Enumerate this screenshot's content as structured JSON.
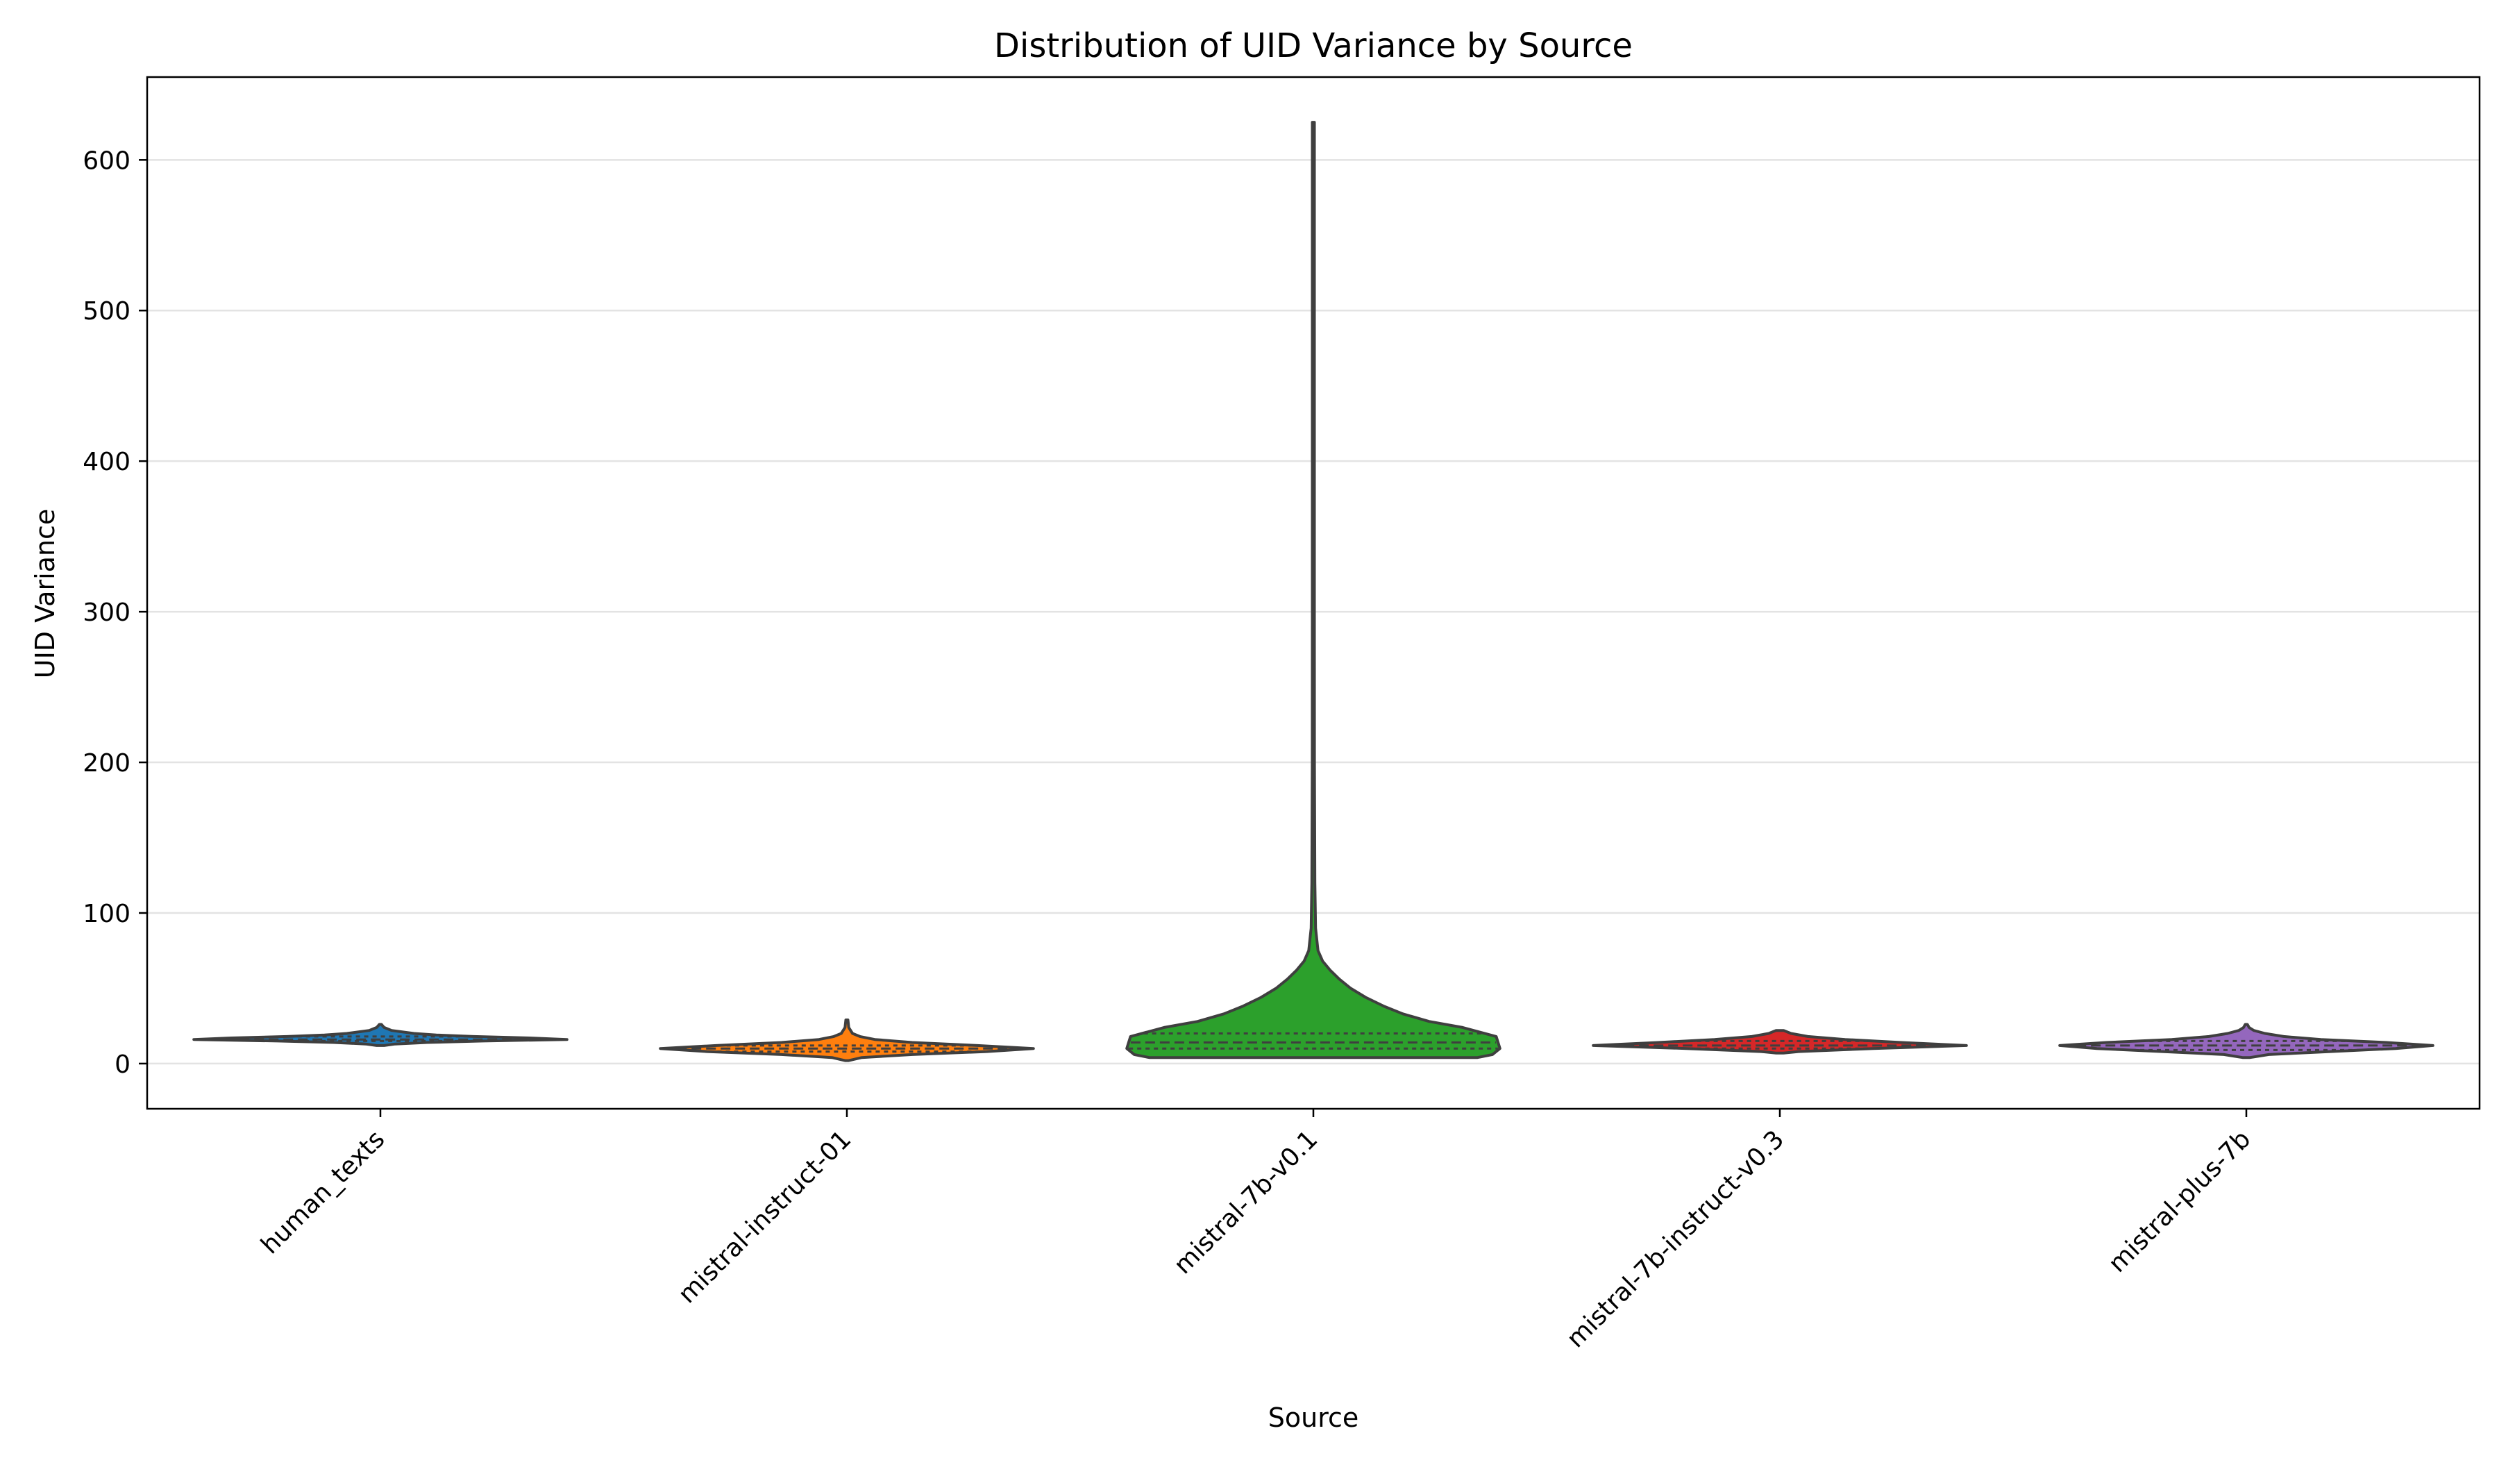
{
  "chart_data": {
    "type": "violin",
    "title": "Distribution of UID Variance by Source",
    "xlabel": "Source",
    "ylabel": "UID Variance",
    "ylim": [
      -30,
      655
    ],
    "yticks": [
      0,
      100,
      200,
      300,
      400,
      500,
      600
    ],
    "grid": "horizontal",
    "legend": "none",
    "inner": "quartile",
    "categories": [
      "human_texts",
      "mistral-instruct-01",
      "mistral-7b-v0.1",
      "mistral-7b-instruct-v0.3",
      "mistral-plus-7b"
    ],
    "series": [
      {
        "category": "human_texts",
        "color": "#1f77b4",
        "min": 12,
        "q1": 15,
        "median": 16,
        "q3": 18,
        "max": 26,
        "profile": [
          [
            12,
            0.02
          ],
          [
            13,
            0.08
          ],
          [
            14,
            0.25
          ],
          [
            15,
            0.55
          ],
          [
            16,
            1.0
          ],
          [
            17,
            0.8
          ],
          [
            18,
            0.5
          ],
          [
            19,
            0.3
          ],
          [
            20,
            0.18
          ],
          [
            22,
            0.06
          ],
          [
            24,
            0.02
          ],
          [
            26,
            0.005
          ]
        ]
      },
      {
        "category": "mistral-instruct-01",
        "color": "#ff7f0e",
        "min": 2,
        "q1": 8,
        "median": 10,
        "q3": 12,
        "max": 29,
        "profile": [
          [
            2,
            0.01
          ],
          [
            4,
            0.08
          ],
          [
            6,
            0.35
          ],
          [
            8,
            0.75
          ],
          [
            10,
            1.0
          ],
          [
            12,
            0.7
          ],
          [
            14,
            0.35
          ],
          [
            16,
            0.15
          ],
          [
            18,
            0.07
          ],
          [
            20,
            0.03
          ],
          [
            24,
            0.01
          ],
          [
            29,
            0.003
          ]
        ]
      },
      {
        "category": "mistral-7b-v0.1",
        "color": "#2ca02c",
        "min": 4,
        "q1": 10,
        "median": 14,
        "q3": 20,
        "max": 625,
        "profile": [
          [
            4,
            0.88
          ],
          [
            6,
            0.96
          ],
          [
            10,
            1.0
          ],
          [
            14,
            0.99
          ],
          [
            18,
            0.98
          ],
          [
            24,
            0.8
          ],
          [
            28,
            0.62
          ],
          [
            33,
            0.48
          ],
          [
            38,
            0.38
          ],
          [
            44,
            0.28
          ],
          [
            50,
            0.2
          ],
          [
            56,
            0.14
          ],
          [
            62,
            0.09
          ],
          [
            68,
            0.05
          ],
          [
            75,
            0.025
          ],
          [
            90,
            0.012
          ],
          [
            120,
            0.008
          ],
          [
            200,
            0.006
          ],
          [
            300,
            0.005
          ],
          [
            400,
            0.0055
          ],
          [
            500,
            0.004
          ],
          [
            600,
            0.004
          ],
          [
            625,
            0.004
          ]
        ]
      },
      {
        "category": "mistral-7b-instruct-v0.3",
        "color": "#d62728",
        "min": 7,
        "q1": 10,
        "median": 12,
        "q3": 15,
        "max": 22,
        "profile": [
          [
            7,
            0.02
          ],
          [
            8,
            0.1
          ],
          [
            10,
            0.5
          ],
          [
            12,
            1.0
          ],
          [
            14,
            0.65
          ],
          [
            16,
            0.35
          ],
          [
            18,
            0.15
          ],
          [
            20,
            0.06
          ],
          [
            22,
            0.02
          ]
        ]
      },
      {
        "category": "mistral-plus-7b",
        "color": "#9467bd",
        "min": 4,
        "q1": 9,
        "median": 12,
        "q3": 15,
        "max": 26,
        "profile": [
          [
            4,
            0.02
          ],
          [
            6,
            0.12
          ],
          [
            8,
            0.45
          ],
          [
            10,
            0.8
          ],
          [
            12,
            1.0
          ],
          [
            14,
            0.75
          ],
          [
            16,
            0.4
          ],
          [
            18,
            0.2
          ],
          [
            20,
            0.1
          ],
          [
            22,
            0.04
          ],
          [
            24,
            0.015
          ],
          [
            26,
            0.005
          ]
        ]
      }
    ]
  }
}
